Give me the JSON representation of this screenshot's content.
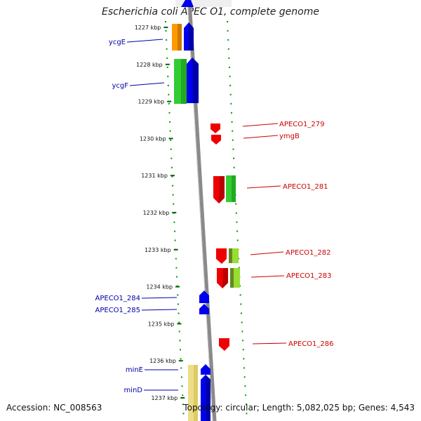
{
  "title": "Escherichia coli APEC O1, complete genome",
  "footer": {
    "accession": "Accession: NC_008563",
    "summary": "Topology: circular; Length: 5,082,025 bp; Genes: 4,543"
  },
  "colors": {
    "forward_cds": "#0000ee",
    "reverse_cds": "#ee0000",
    "left_label": "#0000aa",
    "right_label": "#cc0000",
    "cog_green": "#33cc33",
    "cog_orange": "#ff9900",
    "cog_yellowgreen": "#99dd33",
    "cog_pale": "#eedd88",
    "backbone": "#888888",
    "tick": "#006600"
  },
  "ticks": [
    "1227 kbp",
    "1228 kbp",
    "1229 kbp",
    "1230 kbp",
    "1231 kbp",
    "1232 kbp",
    "1233 kbp",
    "1234 kbp",
    "1235 kbp",
    "1236 kbp",
    "1237 kbp"
  ],
  "left_labels": [
    "ycgE",
    "ycgF",
    "APECO1_284",
    "APECO1_285",
    "minE",
    "minD"
  ],
  "right_labels": [
    "APECO1_279",
    "ymgB",
    "APECO1_281",
    "APECO1_282",
    "APECO1_283",
    "APECO1_286"
  ]
}
